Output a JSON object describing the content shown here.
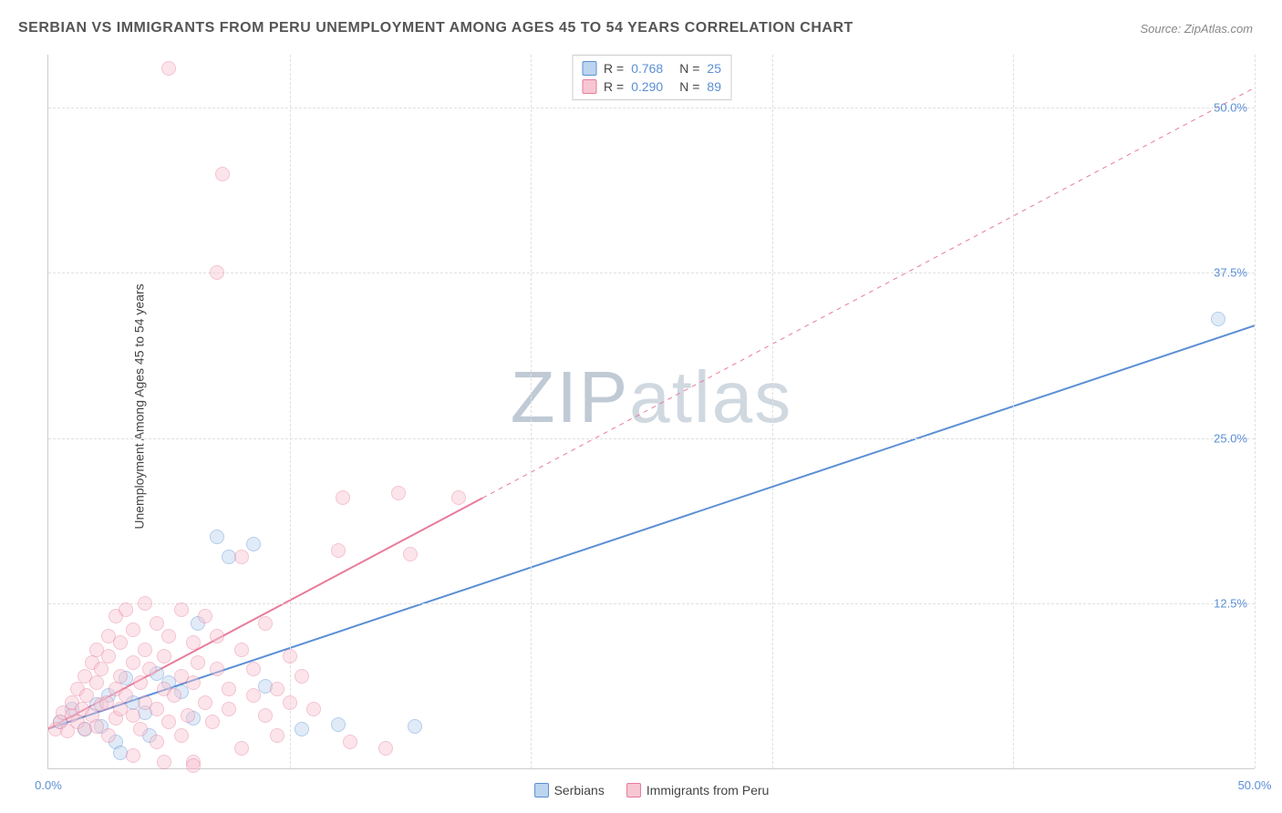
{
  "title": "SERBIAN VS IMMIGRANTS FROM PERU UNEMPLOYMENT AMONG AGES 45 TO 54 YEARS CORRELATION CHART",
  "source": "Source: ZipAtlas.com",
  "ylabel": "Unemployment Among Ages 45 to 54 years",
  "watermark": {
    "bold": "ZIP",
    "light": "atlas"
  },
  "chart": {
    "type": "scatter",
    "xlim": [
      0,
      50
    ],
    "ylim": [
      0,
      54
    ],
    "xticks": [
      {
        "v": 0,
        "label": "0.0%"
      },
      {
        "v": 50,
        "label": "50.0%"
      }
    ],
    "yticks": [
      {
        "v": 12.5,
        "label": "12.5%"
      },
      {
        "v": 25.0,
        "label": "25.0%"
      },
      {
        "v": 37.5,
        "label": "37.5%"
      },
      {
        "v": 50.0,
        "label": "50.0%"
      }
    ],
    "xgrid": [
      10,
      20,
      30,
      40,
      50
    ],
    "ygrid": [
      12.5,
      25.0,
      37.5,
      50.0
    ],
    "tick_color": "#5b8fd6",
    "grid_color": "#e0e0e0",
    "background_color": "#ffffff",
    "point_radius": 8,
    "point_opacity": 0.45,
    "series": [
      {
        "name": "Serbians",
        "color": "#5b8fd6",
        "fill": "#bcd4ef",
        "R": "0.768",
        "N": "25",
        "trend": {
          "x1": 0,
          "y1": 3.0,
          "x2": 50,
          "y2": 33.5,
          "width": 2,
          "dash_after": null
        },
        "points": [
          [
            0.5,
            3.5
          ],
          [
            1.0,
            4.5
          ],
          [
            1.5,
            3.0
          ],
          [
            2.0,
            4.8
          ],
          [
            2.2,
            3.2
          ],
          [
            2.5,
            5.5
          ],
          [
            2.8,
            2.0
          ],
          [
            3.0,
            1.2
          ],
          [
            3.2,
            6.8
          ],
          [
            3.5,
            5.0
          ],
          [
            4.0,
            4.2
          ],
          [
            4.5,
            7.2
          ],
          [
            5.0,
            6.5
          ],
          [
            5.5,
            5.8
          ],
          [
            6.0,
            3.8
          ],
          [
            6.2,
            11.0
          ],
          [
            7.0,
            17.5
          ],
          [
            7.5,
            16.0
          ],
          [
            8.5,
            17.0
          ],
          [
            9.0,
            6.2
          ],
          [
            10.5,
            3.0
          ],
          [
            12.0,
            3.3
          ],
          [
            15.2,
            3.2
          ],
          [
            48.5,
            34.0
          ],
          [
            4.2,
            2.5
          ]
        ]
      },
      {
        "name": "Immigrants from Peru",
        "color": "#e87b9a",
        "fill": "#f7c6d3",
        "R": "0.290",
        "N": "89",
        "trend": {
          "x1": 0,
          "y1": 3.0,
          "x2": 50,
          "y2": 51.5,
          "width": 2,
          "dash_after": 18
        },
        "points": [
          [
            0.3,
            3.0
          ],
          [
            0.5,
            3.5
          ],
          [
            0.6,
            4.2
          ],
          [
            0.8,
            2.8
          ],
          [
            1.0,
            4.0
          ],
          [
            1.0,
            5.0
          ],
          [
            1.2,
            3.5
          ],
          [
            1.2,
            6.0
          ],
          [
            1.4,
            4.5
          ],
          [
            1.5,
            3.0
          ],
          [
            1.5,
            7.0
          ],
          [
            1.6,
            5.5
          ],
          [
            1.8,
            4.0
          ],
          [
            1.8,
            8.0
          ],
          [
            2.0,
            3.2
          ],
          [
            2.0,
            6.5
          ],
          [
            2.0,
            9.0
          ],
          [
            2.2,
            4.8
          ],
          [
            2.2,
            7.5
          ],
          [
            2.4,
            5.0
          ],
          [
            2.5,
            2.5
          ],
          [
            2.5,
            8.5
          ],
          [
            2.5,
            10.0
          ],
          [
            2.8,
            3.8
          ],
          [
            2.8,
            6.0
          ],
          [
            2.8,
            11.5
          ],
          [
            3.0,
            4.5
          ],
          [
            3.0,
            7.0
          ],
          [
            3.0,
            9.5
          ],
          [
            3.2,
            5.5
          ],
          [
            3.2,
            12.0
          ],
          [
            3.5,
            4.0
          ],
          [
            3.5,
            8.0
          ],
          [
            3.5,
            10.5
          ],
          [
            3.8,
            6.5
          ],
          [
            3.8,
            3.0
          ],
          [
            4.0,
            5.0
          ],
          [
            4.0,
            9.0
          ],
          [
            4.0,
            12.5
          ],
          [
            4.2,
            7.5
          ],
          [
            4.5,
            4.5
          ],
          [
            4.5,
            11.0
          ],
          [
            4.5,
            2.0
          ],
          [
            4.8,
            6.0
          ],
          [
            4.8,
            8.5
          ],
          [
            5.0,
            3.5
          ],
          [
            5.0,
            10.0
          ],
          [
            5.0,
            53.0
          ],
          [
            5.2,
            5.5
          ],
          [
            5.5,
            7.0
          ],
          [
            5.5,
            12.0
          ],
          [
            5.5,
            2.5
          ],
          [
            5.8,
            4.0
          ],
          [
            6.0,
            9.5
          ],
          [
            6.0,
            6.5
          ],
          [
            6.0,
            0.5
          ],
          [
            6.2,
            8.0
          ],
          [
            6.5,
            5.0
          ],
          [
            6.5,
            11.5
          ],
          [
            6.8,
            3.5
          ],
          [
            7.0,
            7.5
          ],
          [
            7.0,
            10.0
          ],
          [
            7.0,
            37.5
          ],
          [
            7.2,
            45.0
          ],
          [
            7.5,
            6.0
          ],
          [
            7.5,
            4.5
          ],
          [
            8.0,
            9.0
          ],
          [
            8.0,
            16.0
          ],
          [
            8.0,
            1.5
          ],
          [
            8.5,
            5.5
          ],
          [
            8.5,
            7.5
          ],
          [
            9.0,
            4.0
          ],
          [
            9.0,
            11.0
          ],
          [
            9.5,
            6.0
          ],
          [
            9.5,
            2.5
          ],
          [
            10.0,
            8.5
          ],
          [
            10.0,
            5.0
          ],
          [
            10.5,
            7.0
          ],
          [
            11.0,
            4.5
          ],
          [
            12.0,
            16.5
          ],
          [
            12.2,
            20.5
          ],
          [
            12.5,
            2.0
          ],
          [
            14.0,
            1.5
          ],
          [
            14.5,
            20.8
          ],
          [
            15.0,
            16.2
          ],
          [
            17.0,
            20.5
          ],
          [
            6.0,
            0.2
          ],
          [
            4.8,
            0.5
          ],
          [
            3.5,
            1.0
          ]
        ]
      }
    ],
    "legend_bottom": [
      {
        "label": "Serbians",
        "fill": "#bcd4ef",
        "stroke": "#5b8fd6"
      },
      {
        "label": "Immigrants from Peru",
        "fill": "#f7c6d3",
        "stroke": "#e87b9a"
      }
    ]
  }
}
